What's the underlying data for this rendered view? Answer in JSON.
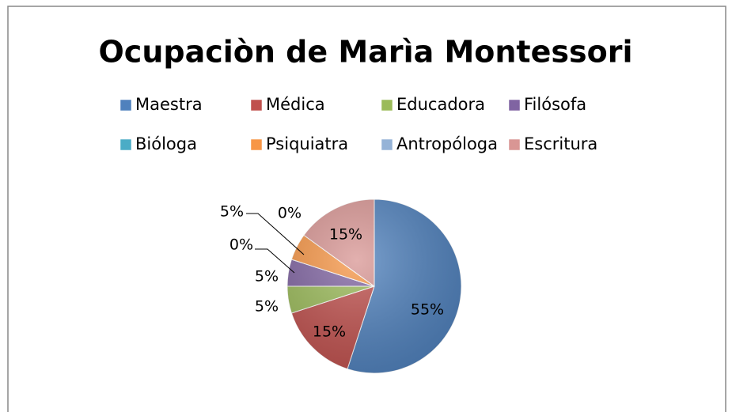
{
  "chart_data": {
    "type": "pie",
    "title": "Ocupaciòn de Marìa Montessori",
    "categories": [
      "Maestra",
      "Médica",
      "Educadora",
      "Filósofa",
      "Bióloga",
      "Psiquiatra",
      "Antropóloga",
      "Escritura"
    ],
    "values": [
      55,
      15,
      5,
      5,
      0,
      5,
      0,
      15
    ],
    "value_labels": [
      "55%",
      "15%",
      "5%",
      "5%",
      "0%",
      "5%",
      "0%",
      "15%"
    ],
    "colors": [
      "#4f81bd",
      "#c0504d",
      "#9bbb59",
      "#8064a2",
      "#4bacc6",
      "#f79646",
      "#95b3d7",
      "#d99694"
    ],
    "legend": "top"
  }
}
